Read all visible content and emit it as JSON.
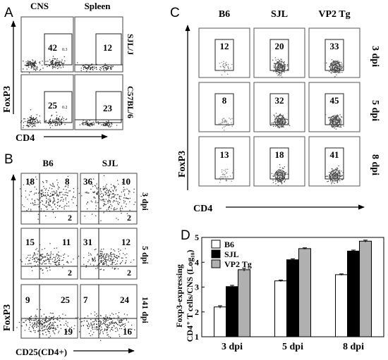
{
  "panelA": {
    "letter": "A",
    "col_headers": [
      "CNS",
      "Spleen"
    ],
    "rows": [
      {
        "label": "SJL/J",
        "values": [
          "42",
          "12"
        ],
        "small": [
          "0.3",
          ""
        ]
      },
      {
        "label": "C57BL/6",
        "values": [
          "25",
          "23"
        ],
        "small": [
          "0.2",
          ""
        ]
      }
    ],
    "y_axis": "FoxP3",
    "x_axis": "CD4"
  },
  "panelB": {
    "letter": "B",
    "col_headers": [
      "B6",
      "SJL"
    ],
    "rows": [
      {
        "label": "3 dpi",
        "quads": [
          [
            "18",
            "8",
            "2"
          ],
          [
            "36",
            "10",
            "2"
          ]
        ]
      },
      {
        "label": "5 dpi",
        "quads": [
          [
            "15",
            "11",
            "2"
          ],
          [
            "31",
            "12",
            "2"
          ]
        ]
      },
      {
        "label": "141 dpi",
        "quads": [
          [
            "9",
            "25",
            "19"
          ],
          [
            "7",
            "24",
            "16"
          ]
        ]
      }
    ],
    "y_axis": "FoxP3",
    "x_axis": "CD25(CD4+)"
  },
  "panelC": {
    "letter": "C",
    "col_headers": [
      "B6",
      "SJL",
      "VP2 Tg"
    ],
    "rows": [
      {
        "label": "3 dpi",
        "values": [
          "12",
          "20",
          "33"
        ]
      },
      {
        "label": "5 dpi",
        "values": [
          "8",
          "32",
          "45"
        ]
      },
      {
        "label": "8 dpi",
        "values": [
          "13",
          "18",
          "41"
        ]
      }
    ],
    "y_axis": "FoxP3",
    "x_axis": "CD4"
  },
  "panelD": {
    "letter": "D",
    "ylabel_line1": "Foxp3-expressing",
    "ylabel_line2": "CD4⁺ T cells/CNS (Log₁₀)",
    "chart_data": {
      "type": "bar",
      "categories": [
        "3 dpi",
        "5 dpi",
        "8 dpi"
      ],
      "series": [
        {
          "name": "B6",
          "values": [
            2.2,
            3.25,
            3.5
          ],
          "errors": [
            0.05,
            0.03,
            0.03
          ],
          "color": "#ffffff"
        },
        {
          "name": "SJL",
          "values": [
            3.02,
            4.1,
            4.45
          ],
          "errors": [
            0.05,
            0.04,
            0.04
          ],
          "color": "#000000"
        },
        {
          "name": "VP2 Tg",
          "values": [
            3.7,
            4.55,
            4.85
          ],
          "errors": [
            0.06,
            0.03,
            0.04
          ],
          "color": "#b0b0b0"
        }
      ],
      "ylim": [
        1,
        5
      ],
      "yticks": [
        "1",
        "2",
        "3",
        "4",
        "5"
      ],
      "legend": "top-left"
    }
  }
}
